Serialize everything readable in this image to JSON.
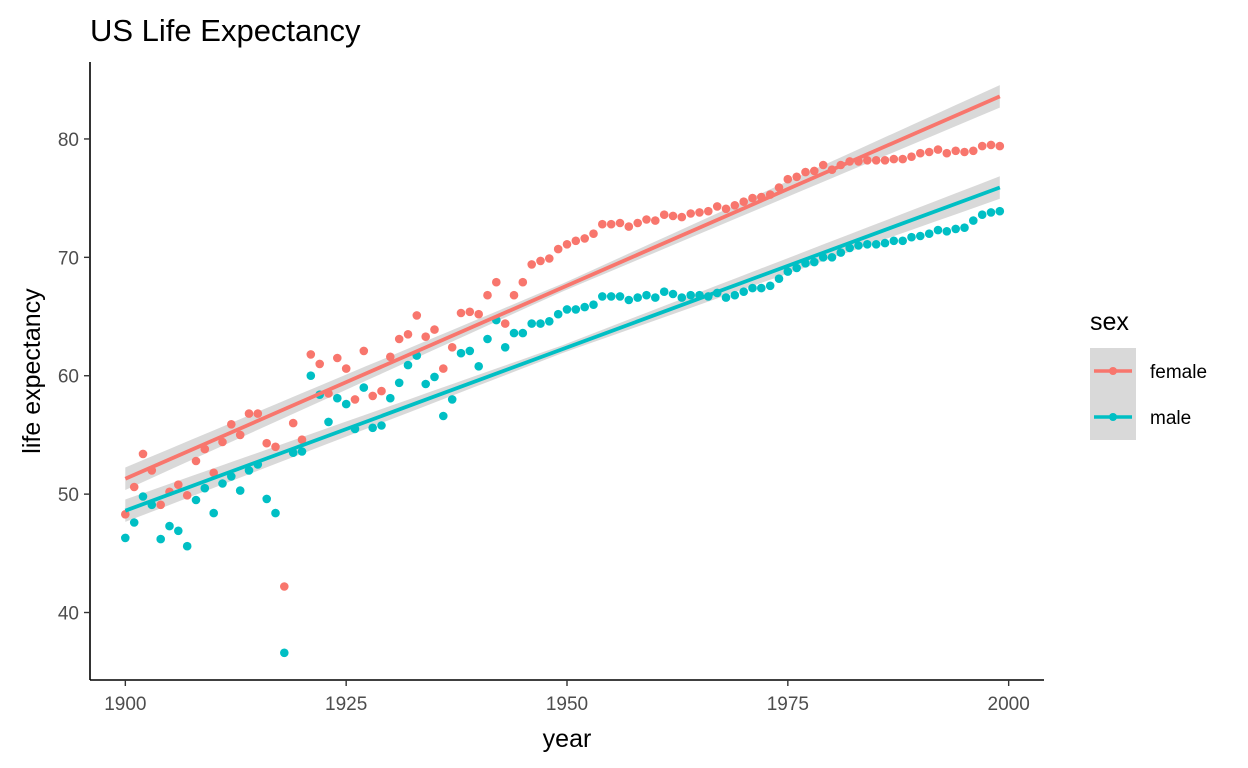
{
  "chart_data": {
    "type": "scatter",
    "title": "US Life Expectancy",
    "xlabel": "year",
    "ylabel": "life expectancy",
    "xlim": [
      1896,
      2004
    ],
    "ylim": [
      34.3,
      86.5
    ],
    "x_ticks": [
      1900,
      1925,
      1950,
      1975,
      2000
    ],
    "y_ticks": [
      40,
      50,
      60,
      70,
      80
    ],
    "grid": false,
    "legend": {
      "title": "sex",
      "position": "right"
    },
    "series": [
      {
        "name": "female",
        "color": "#F8766D",
        "x": [
          1900,
          1901,
          1902,
          1903,
          1904,
          1905,
          1906,
          1907,
          1908,
          1909,
          1910,
          1911,
          1912,
          1913,
          1914,
          1915,
          1916,
          1917,
          1918,
          1919,
          1920,
          1921,
          1922,
          1923,
          1924,
          1925,
          1926,
          1927,
          1928,
          1929,
          1930,
          1931,
          1932,
          1933,
          1934,
          1935,
          1936,
          1937,
          1938,
          1939,
          1940,
          1941,
          1942,
          1943,
          1944,
          1945,
          1946,
          1947,
          1948,
          1949,
          1950,
          1951,
          1952,
          1953,
          1954,
          1955,
          1956,
          1957,
          1958,
          1959,
          1960,
          1961,
          1962,
          1963,
          1964,
          1965,
          1966,
          1967,
          1968,
          1969,
          1970,
          1971,
          1972,
          1973,
          1974,
          1975,
          1976,
          1977,
          1978,
          1979,
          1980,
          1981,
          1982,
          1983,
          1984,
          1985,
          1986,
          1987,
          1988,
          1989,
          1990,
          1991,
          1992,
          1993,
          1994,
          1995,
          1996,
          1997,
          1998,
          1999
        ],
        "values": [
          48.3,
          50.6,
          53.4,
          52.0,
          49.1,
          50.2,
          50.8,
          49.9,
          52.8,
          53.8,
          51.8,
          54.4,
          55.9,
          55.0,
          56.8,
          56.8,
          54.3,
          54.0,
          42.2,
          56.0,
          54.6,
          61.8,
          61.0,
          58.5,
          61.5,
          60.6,
          58.0,
          62.1,
          58.3,
          58.7,
          61.6,
          63.1,
          63.5,
          65.1,
          63.3,
          63.9,
          60.6,
          62.4,
          65.3,
          65.4,
          65.2,
          66.8,
          67.9,
          64.4,
          66.8,
          67.9,
          69.4,
          69.7,
          69.9,
          70.7,
          71.1,
          71.4,
          71.6,
          72.0,
          72.8,
          72.8,
          72.9,
          72.6,
          72.9,
          73.2,
          73.1,
          73.6,
          73.5,
          73.4,
          73.7,
          73.8,
          73.9,
          74.3,
          74.1,
          74.4,
          74.7,
          75.0,
          75.1,
          75.3,
          75.9,
          76.6,
          76.8,
          77.2,
          77.3,
          77.8,
          77.4,
          77.8,
          78.1,
          78.1,
          78.2,
          78.2,
          78.2,
          78.3,
          78.3,
          78.5,
          78.8,
          78.9,
          79.1,
          78.8,
          79.0,
          78.9,
          79.0,
          79.4,
          79.5,
          79.4
        ],
        "fit_start": 51.3,
        "fit_end": 83.6
      },
      {
        "name": "male",
        "color": "#00BFC4",
        "x": [
          1900,
          1901,
          1902,
          1903,
          1904,
          1905,
          1906,
          1907,
          1908,
          1909,
          1910,
          1911,
          1912,
          1913,
          1914,
          1915,
          1916,
          1917,
          1918,
          1919,
          1920,
          1921,
          1922,
          1923,
          1924,
          1925,
          1926,
          1927,
          1928,
          1929,
          1930,
          1931,
          1932,
          1933,
          1934,
          1935,
          1936,
          1937,
          1938,
          1939,
          1940,
          1941,
          1942,
          1943,
          1944,
          1945,
          1946,
          1947,
          1948,
          1949,
          1950,
          1951,
          1952,
          1953,
          1954,
          1955,
          1956,
          1957,
          1958,
          1959,
          1960,
          1961,
          1962,
          1963,
          1964,
          1965,
          1966,
          1967,
          1968,
          1969,
          1970,
          1971,
          1972,
          1973,
          1974,
          1975,
          1976,
          1977,
          1978,
          1979,
          1980,
          1981,
          1982,
          1983,
          1984,
          1985,
          1986,
          1987,
          1988,
          1989,
          1990,
          1991,
          1992,
          1993,
          1994,
          1995,
          1996,
          1997,
          1998,
          1999
        ],
        "values": [
          46.3,
          47.6,
          49.8,
          49.1,
          46.2,
          47.3,
          46.9,
          45.6,
          49.5,
          50.5,
          48.4,
          50.9,
          51.5,
          50.3,
          52.0,
          52.5,
          49.6,
          48.4,
          36.6,
          53.5,
          53.6,
          60.0,
          58.4,
          56.1,
          58.1,
          57.6,
          55.5,
          59.0,
          55.6,
          55.8,
          58.1,
          59.4,
          60.9,
          61.7,
          59.3,
          59.9,
          56.6,
          58.0,
          61.9,
          62.1,
          60.8,
          63.1,
          64.7,
          62.4,
          63.6,
          63.6,
          64.4,
          64.4,
          64.6,
          65.2,
          65.6,
          65.6,
          65.8,
          66.0,
          66.7,
          66.7,
          66.7,
          66.4,
          66.6,
          66.8,
          66.6,
          67.1,
          66.9,
          66.6,
          66.8,
          66.8,
          66.7,
          67.0,
          66.6,
          66.8,
          67.1,
          67.4,
          67.4,
          67.6,
          68.2,
          68.8,
          69.1,
          69.5,
          69.6,
          70.0,
          70.0,
          70.4,
          70.8,
          71.0,
          71.1,
          71.1,
          71.2,
          71.4,
          71.4,
          71.7,
          71.8,
          72.0,
          72.3,
          72.2,
          72.4,
          72.5,
          73.1,
          73.6,
          73.8,
          73.9
        ],
        "fit_start": 48.6,
        "fit_end": 75.9
      }
    ]
  }
}
